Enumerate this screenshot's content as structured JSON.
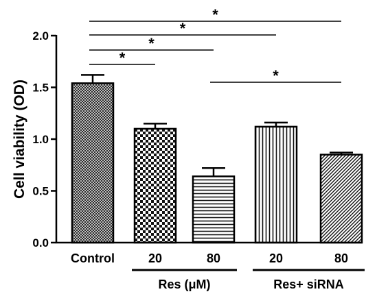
{
  "chart_data": {
    "type": "bar",
    "title": "",
    "xlabel": "",
    "ylabel": "Cell viability (OD)",
    "ylim": [
      0,
      2.0
    ],
    "yticks": [
      "0.0",
      "0.5",
      "1.0",
      "1.5",
      "2.0"
    ],
    "grid": false,
    "categories": [
      "Control",
      "20",
      "80",
      "20",
      "80"
    ],
    "values": [
      1.54,
      1.1,
      0.64,
      1.12,
      0.85
    ],
    "errors": [
      0.08,
      0.05,
      0.08,
      0.04,
      0.02
    ],
    "patterns": [
      "crosshatch",
      "checkerboard",
      "horizontal-lines",
      "vertical-lines",
      "diagonal-lines"
    ],
    "groups": [
      {
        "label": "Res (μM)",
        "categories": [
          1,
          2
        ]
      },
      {
        "label": "Res+ siRNA",
        "categories": [
          3,
          4
        ]
      }
    ],
    "significance": [
      {
        "from": 0,
        "to": 4,
        "label": "*"
      },
      {
        "from": 0,
        "to": 3,
        "label": "*"
      },
      {
        "from": 0,
        "to": 2,
        "label": "*"
      },
      {
        "from": 0,
        "to": 1,
        "label": "*"
      },
      {
        "from": 2,
        "to": 4,
        "label": "*"
      }
    ]
  }
}
